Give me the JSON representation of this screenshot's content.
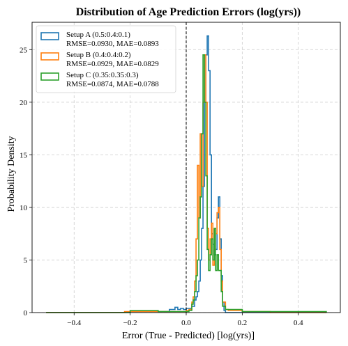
{
  "chart_data": {
    "type": "histogram",
    "title": "Distribution of Age Prediction Errors (log(yrs))",
    "xlabel": "Error (True - Predicted) [log(yrs)]",
    "ylabel": "Probability Density",
    "xlim": [
      -0.55,
      0.55
    ],
    "ylim": [
      0,
      27.6
    ],
    "xticks": [
      -0.4,
      -0.2,
      0.0,
      0.2,
      0.4
    ],
    "xtick_labels": [
      "−0.4",
      "−0.2",
      "0.0",
      "0.2",
      "0.4"
    ],
    "yticks": [
      0,
      5,
      10,
      15,
      20,
      25
    ],
    "ytick_labels": [
      "0",
      "5",
      "10",
      "15",
      "20",
      "25"
    ],
    "grid": true,
    "legend_position": "top-left",
    "reference_line": {
      "x": 0.0,
      "style": "dashed",
      "color": "#000000"
    },
    "series": [
      {
        "name": "Setup A (0.5:0.4:0.1)",
        "stats": "RMSE=0.0930, MAE=0.0893",
        "color": "#1f77b4",
        "points": [
          [
            -0.5,
            0
          ],
          [
            -0.3,
            0
          ],
          [
            -0.2,
            0.1
          ],
          [
            -0.1,
            0.1
          ],
          [
            -0.06,
            0.3
          ],
          [
            -0.04,
            0.5
          ],
          [
            -0.03,
            0.3
          ],
          [
            -0.02,
            0.4
          ],
          [
            -0.01,
            0.3
          ],
          [
            0.0,
            0.4
          ],
          [
            0.01,
            0.4
          ],
          [
            0.02,
            0.6
          ],
          [
            0.03,
            1.2
          ],
          [
            0.035,
            1.5
          ],
          [
            0.04,
            2.0
          ],
          [
            0.045,
            3.0
          ],
          [
            0.05,
            5.0
          ],
          [
            0.055,
            8.0
          ],
          [
            0.06,
            12.0
          ],
          [
            0.065,
            20.0
          ],
          [
            0.07,
            24.5
          ],
          [
            0.075,
            26.3
          ],
          [
            0.08,
            23.0
          ],
          [
            0.085,
            15.0
          ],
          [
            0.09,
            7.5
          ],
          [
            0.095,
            6.5
          ],
          [
            0.1,
            5.5
          ],
          [
            0.105,
            6.0
          ],
          [
            0.11,
            9.0
          ],
          [
            0.115,
            11.0
          ],
          [
            0.12,
            7.0
          ],
          [
            0.125,
            3.5
          ],
          [
            0.13,
            1.0
          ],
          [
            0.135,
            0.2
          ],
          [
            0.14,
            0
          ],
          [
            0.3,
            0
          ],
          [
            0.5,
            0
          ]
        ]
      },
      {
        "name": "Setup B (0.4:0.4:0.2)",
        "stats": "RMSE=0.0929, MAE=0.0829",
        "color": "#ff7f0e",
        "points": [
          [
            -0.5,
            0
          ],
          [
            -0.3,
            0
          ],
          [
            -0.22,
            0.1
          ],
          [
            -0.15,
            0.1
          ],
          [
            -0.1,
            0.1
          ],
          [
            -0.05,
            0.1
          ],
          [
            0.0,
            0.2
          ],
          [
            0.01,
            0.3
          ],
          [
            0.02,
            1.0
          ],
          [
            0.025,
            1.5
          ],
          [
            0.03,
            3.0
          ],
          [
            0.035,
            7.0
          ],
          [
            0.04,
            14.0
          ],
          [
            0.045,
            9.0
          ],
          [
            0.05,
            17.0
          ],
          [
            0.055,
            12.0
          ],
          [
            0.06,
            20.0
          ],
          [
            0.065,
            24.5
          ],
          [
            0.07,
            20.0
          ],
          [
            0.075,
            8.0
          ],
          [
            0.08,
            5.0
          ],
          [
            0.085,
            7.0
          ],
          [
            0.09,
            8.5
          ],
          [
            0.095,
            4.5
          ],
          [
            0.1,
            6.0
          ],
          [
            0.105,
            7.5
          ],
          [
            0.11,
            9.5
          ],
          [
            0.115,
            10.0
          ],
          [
            0.12,
            6.0
          ],
          [
            0.125,
            3.0
          ],
          [
            0.13,
            1.0
          ],
          [
            0.14,
            0.3
          ],
          [
            0.15,
            0.2
          ],
          [
            0.2,
            0.1
          ],
          [
            0.3,
            0
          ],
          [
            0.5,
            0
          ]
        ]
      },
      {
        "name": "Setup C (0.35:0.35:0.3)",
        "stats": "RMSE=0.0874, MAE=0.0788",
        "color": "#2ca02c",
        "points": [
          [
            -0.5,
            0
          ],
          [
            -0.3,
            0
          ],
          [
            -0.2,
            0.2
          ],
          [
            -0.1,
            0.1
          ],
          [
            -0.05,
            0.1
          ],
          [
            0.0,
            0.1
          ],
          [
            0.01,
            0.2
          ],
          [
            0.02,
            0.8
          ],
          [
            0.025,
            1.2
          ],
          [
            0.03,
            2.0
          ],
          [
            0.035,
            3.5
          ],
          [
            0.04,
            5.0
          ],
          [
            0.045,
            9.0
          ],
          [
            0.05,
            11.0
          ],
          [
            0.055,
            17.0
          ],
          [
            0.06,
            24.5
          ],
          [
            0.065,
            20.0
          ],
          [
            0.07,
            13.0
          ],
          [
            0.075,
            6.0
          ],
          [
            0.08,
            4.0
          ],
          [
            0.085,
            5.5
          ],
          [
            0.09,
            7.0
          ],
          [
            0.095,
            5.0
          ],
          [
            0.1,
            8.0
          ],
          [
            0.105,
            4.0
          ],
          [
            0.11,
            5.5
          ],
          [
            0.115,
            4.0
          ],
          [
            0.12,
            4.0
          ],
          [
            0.125,
            2.0
          ],
          [
            0.13,
            0.6
          ],
          [
            0.14,
            0.3
          ],
          [
            0.2,
            0.1
          ],
          [
            0.3,
            0.1
          ],
          [
            0.5,
            0
          ]
        ]
      }
    ]
  }
}
